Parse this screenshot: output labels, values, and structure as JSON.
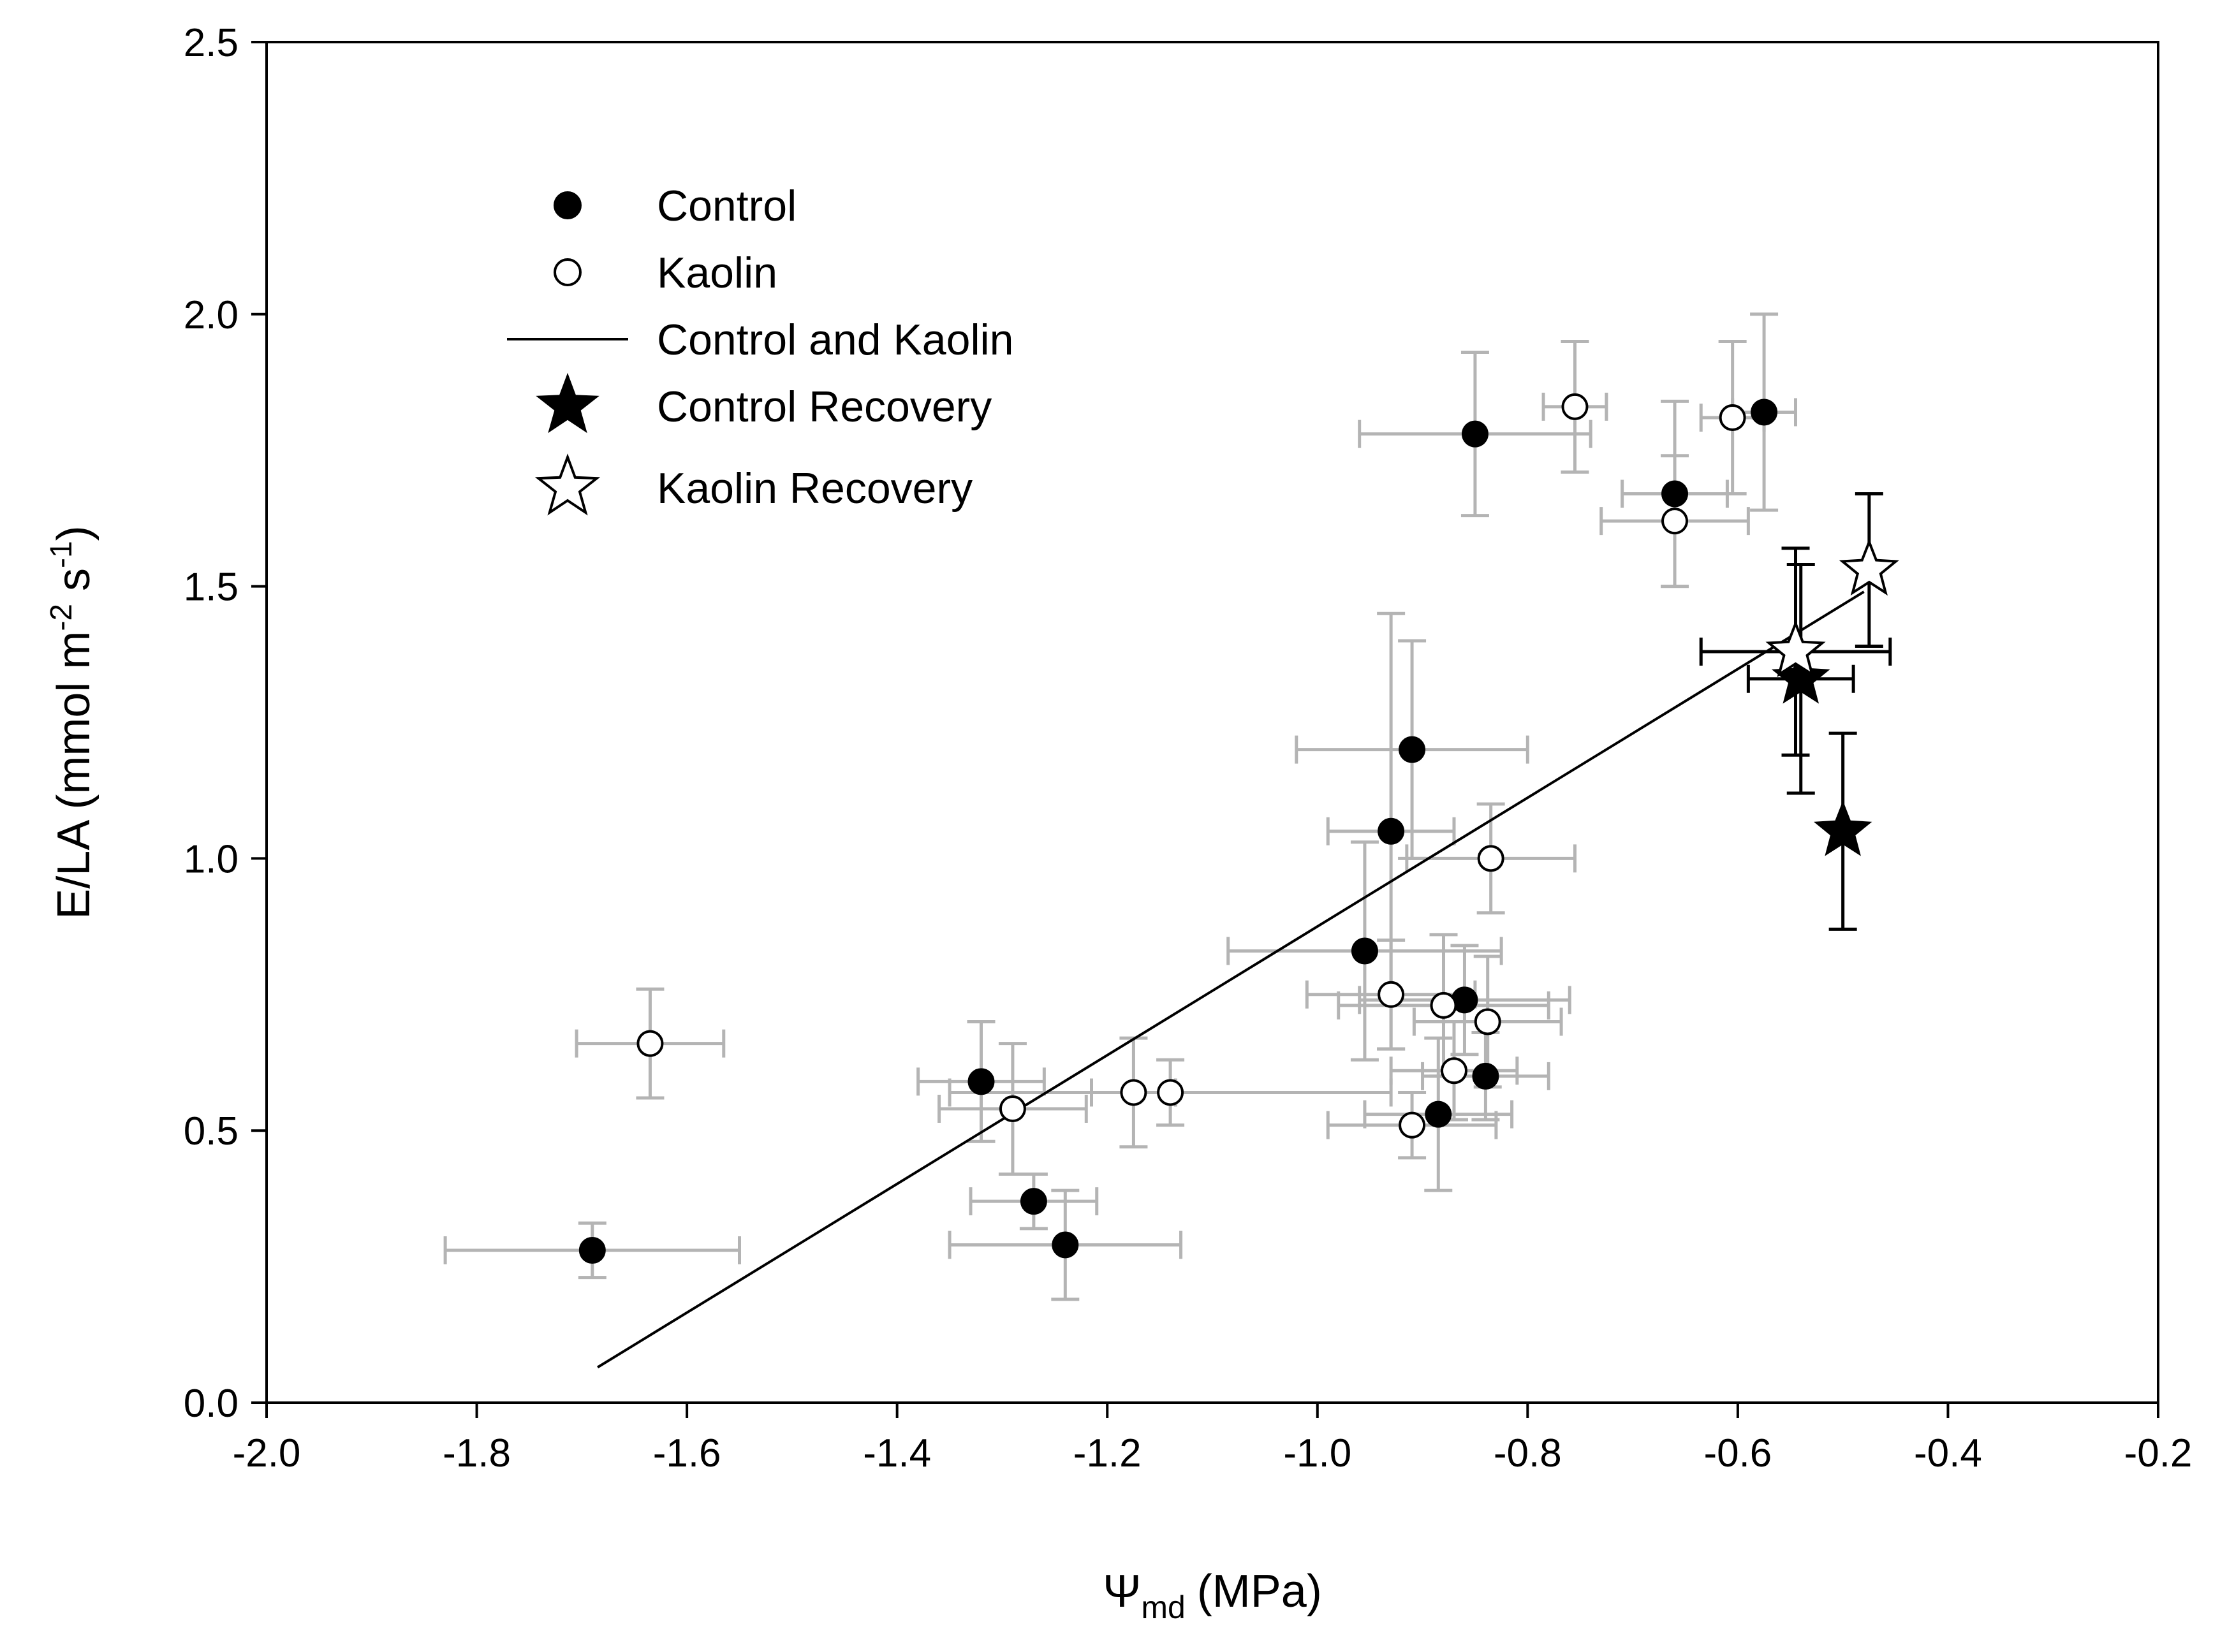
{
  "chart_data": {
    "type": "scatter",
    "title": "",
    "xlabel": {
      "symbol": "Ψ",
      "subscript": "md",
      "unit": "(MPa)"
    },
    "ylabel": {
      "part1": "E/LA (mmol m",
      "sup1": "-2",
      "part2": " s",
      "sup2": "-1",
      "part3": ")"
    },
    "xlim": [
      -2.0,
      -0.2
    ],
    "ylim": [
      0.0,
      2.5
    ],
    "xticks": [
      "-2.0",
      "-1.8",
      "-1.6",
      "-1.4",
      "-1.2",
      "-1.0",
      "-0.8",
      "-0.6",
      "-0.4",
      "-0.2"
    ],
    "yticks": [
      "0.0",
      "0.5",
      "1.0",
      "1.5",
      "2.0",
      "2.5"
    ],
    "grid": false,
    "legend_position": "top-left",
    "legend": [
      {
        "label": "Control",
        "marker": "filled-circle"
      },
      {
        "label": "Kaolin",
        "marker": "open-circle"
      },
      {
        "label": "Control and Kaolin",
        "marker": "line"
      },
      {
        "label": "Control Recovery",
        "marker": "filled-star"
      },
      {
        "label": "Kaolin Recovery",
        "marker": "open-star"
      }
    ],
    "colors": {
      "errorbar_gray": "#b4b4b4",
      "errorbar_black": "#000000",
      "marker_fill": "#000000",
      "open_fill": "#ffffff"
    },
    "series": [
      {
        "name": "Control",
        "marker": "filled-circle",
        "points": [
          {
            "x": -1.69,
            "y": 0.28,
            "xerr": 0.14,
            "yerr": 0.05
          },
          {
            "x": -1.32,
            "y": 0.59,
            "xerr": 0.06,
            "yerr": 0.11
          },
          {
            "x": -1.27,
            "y": 0.37,
            "xerr": 0.06,
            "yerr": 0.05
          },
          {
            "x": -1.24,
            "y": 0.29,
            "xerr": 0.11,
            "yerr": 0.1
          },
          {
            "x": -0.955,
            "y": 0.83,
            "xerr": 0.13,
            "yerr": 0.2
          },
          {
            "x": -0.93,
            "y": 1.05,
            "xerr": 0.06,
            "yerr": 0.4
          },
          {
            "x": -0.91,
            "y": 1.2,
            "xerr": 0.11,
            "yerr": 0.2
          },
          {
            "x": -0.885,
            "y": 0.53,
            "xerr": 0.07,
            "yerr": 0.14
          },
          {
            "x": -0.86,
            "y": 0.74,
            "xerr": 0.1,
            "yerr": 0.1
          },
          {
            "x": -0.85,
            "y": 1.78,
            "xerr": 0.11,
            "yerr": 0.15
          },
          {
            "x": -0.84,
            "y": 0.6,
            "xerr": 0.06,
            "yerr": 0.08
          },
          {
            "x": -0.66,
            "y": 1.67,
            "xerr": 0.05,
            "yerr": 0.17
          },
          {
            "x": -0.575,
            "y": 1.82,
            "xerr": 0.03,
            "yerr": 0.18
          }
        ]
      },
      {
        "name": "Kaolin",
        "marker": "open-circle",
        "points": [
          {
            "x": -1.635,
            "y": 0.66,
            "xerr": 0.07,
            "yerr": 0.1
          },
          {
            "x": -1.29,
            "y": 0.54,
            "xerr": 0.07,
            "yerr": 0.12
          },
          {
            "x": -1.175,
            "y": 0.57,
            "xerr": 0.04,
            "yerr": 0.1
          },
          {
            "x": -1.14,
            "y": 0.57,
            "xerr": 0.21,
            "yerr": 0.06
          },
          {
            "x": -0.93,
            "y": 0.75,
            "xerr": 0.08,
            "yerr": 0.1
          },
          {
            "x": -0.91,
            "y": 0.51,
            "xerr": 0.08,
            "yerr": 0.06
          },
          {
            "x": -0.88,
            "y": 0.73,
            "xerr": 0.1,
            "yerr": 0.13
          },
          {
            "x": -0.87,
            "y": 0.61,
            "xerr": 0.06,
            "yerr": 0.09
          },
          {
            "x": -0.838,
            "y": 0.7,
            "xerr": 0.07,
            "yerr": 0.12
          },
          {
            "x": -0.835,
            "y": 1.0,
            "xerr": 0.08,
            "yerr": 0.1
          },
          {
            "x": -0.755,
            "y": 1.83,
            "xerr": 0.03,
            "yerr": 0.12
          },
          {
            "x": -0.66,
            "y": 1.62,
            "xerr": 0.07,
            "yerr": 0.12
          },
          {
            "x": -0.605,
            "y": 1.81,
            "xerr": 0.03,
            "yerr": 0.14
          }
        ]
      },
      {
        "name": "Control Recovery",
        "marker": "filled-star",
        "points": [
          {
            "x": -0.54,
            "y": 1.33,
            "xerr": 0.05,
            "yerr": 0.21
          },
          {
            "x": -0.5,
            "y": 1.05,
            "xerr": 0.0,
            "yerr": 0.18
          }
        ]
      },
      {
        "name": "Kaolin Recovery",
        "marker": "open-star",
        "points": [
          {
            "x": -0.545,
            "y": 1.38,
            "xerr": 0.09,
            "yerr": 0.19
          },
          {
            "x": -0.475,
            "y": 1.53,
            "xerr": 0.0,
            "yerr": 0.14
          }
        ]
      },
      {
        "name": "Control and Kaolin",
        "marker": "line",
        "x": [
          -1.685,
          -0.48
        ],
        "y": [
          0.065,
          1.49
        ]
      }
    ]
  }
}
